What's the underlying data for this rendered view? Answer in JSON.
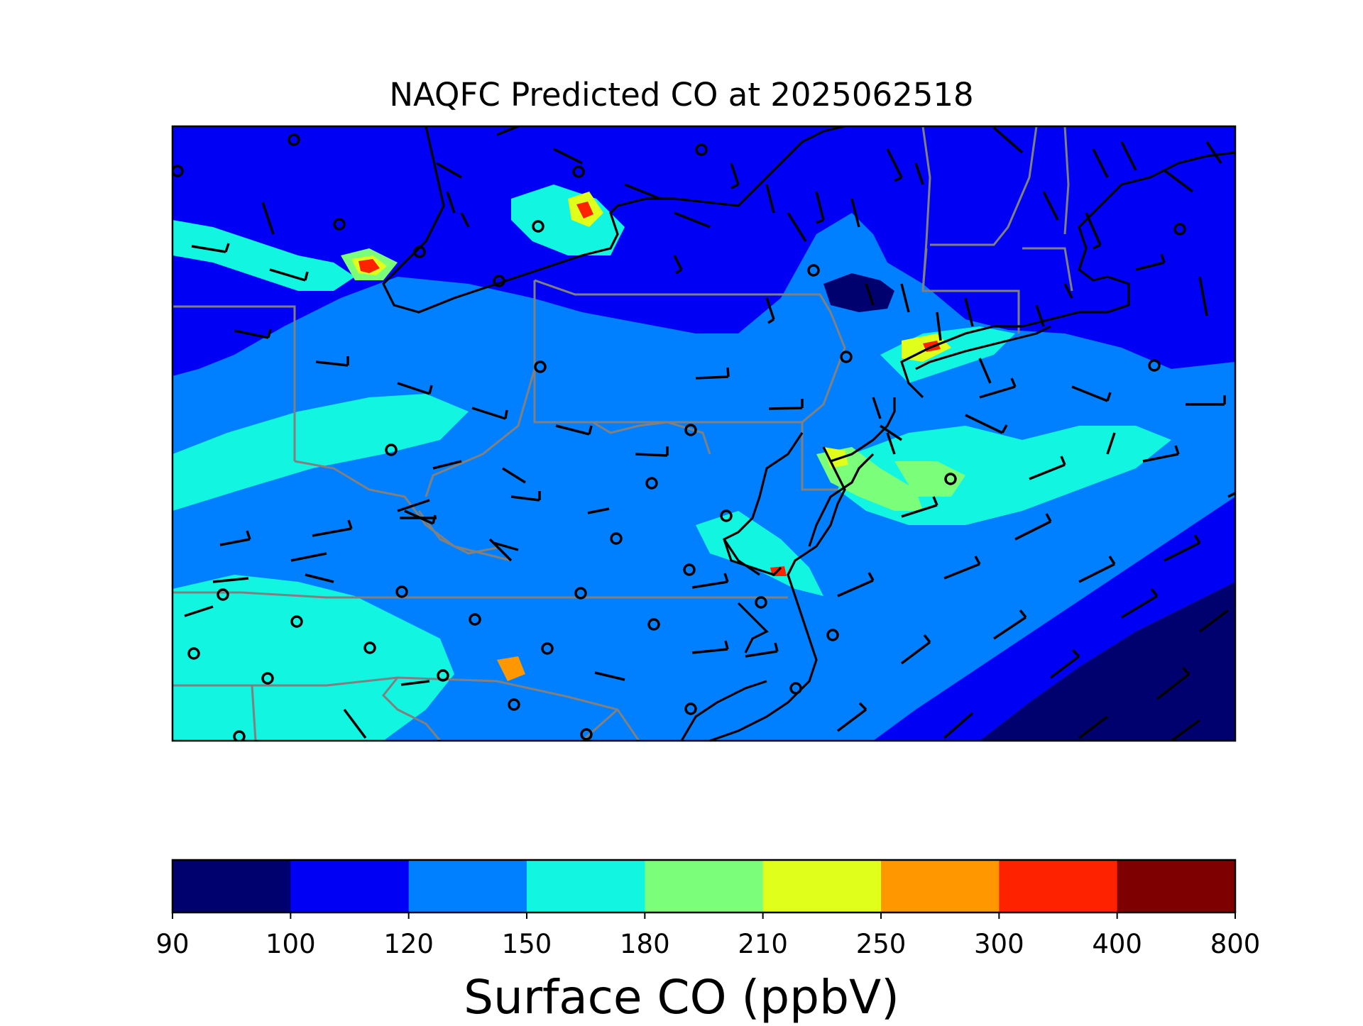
{
  "title": "NAQFC Predicted CO at 2025062518",
  "colorbar": {
    "label": "Surface CO (ppbV)",
    "ticks": [
      "90",
      "100",
      "120",
      "150",
      "180",
      "210",
      "250",
      "300",
      "400",
      "800"
    ],
    "colors": [
      "#00006e",
      "#0000f5",
      "#0080ff",
      "#12f5e0",
      "#7bff7b",
      "#e0ff1a",
      "#ff9800",
      "#ff2200",
      "#7f0000"
    ]
  },
  "map": {
    "ocean_color": "#0080ff",
    "state_line_color": "#808080",
    "coast_line_color": "#000000"
  }
}
